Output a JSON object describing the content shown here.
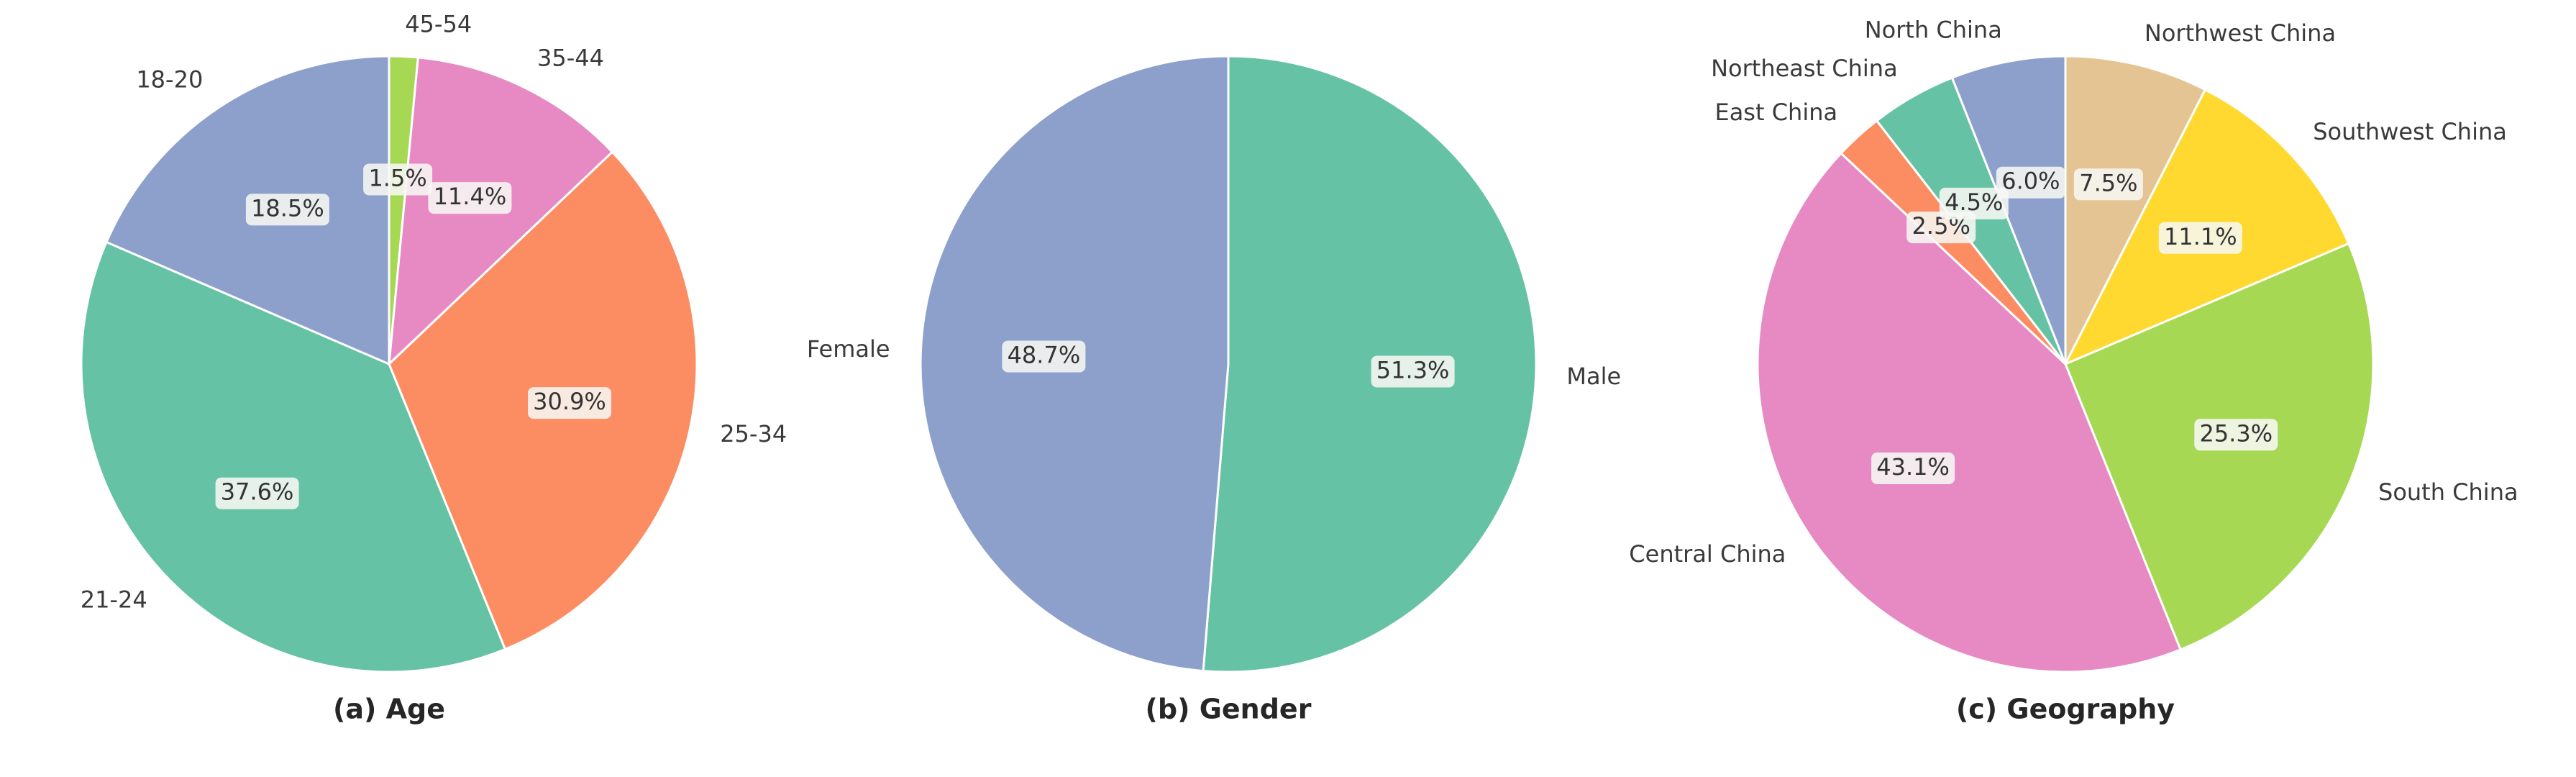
{
  "chart_data": [
    {
      "type": "pie",
      "title": "(a) Age",
      "start_angle_deg": 90,
      "direction": "clockwise",
      "slices": [
        {
          "label": "45-54",
          "value": 1.5,
          "pct_label": "1.5%",
          "color": "#a6d854"
        },
        {
          "label": "35-44",
          "value": 11.4,
          "pct_label": "11.4%",
          "color": "#e78ac3"
        },
        {
          "label": "25-34",
          "value": 30.9,
          "pct_label": "30.9%",
          "color": "#fc8d62"
        },
        {
          "label": "21-24",
          "value": 37.6,
          "pct_label": "37.6%",
          "color": "#66c2a5"
        },
        {
          "label": "18-20",
          "value": 18.5,
          "pct_label": "18.5%",
          "color": "#8da0cb"
        }
      ]
    },
    {
      "type": "pie",
      "title": "(b) Gender",
      "start_angle_deg": 90,
      "direction": "clockwise",
      "slices": [
        {
          "label": "Male",
          "value": 51.3,
          "pct_label": "51.3%",
          "color": "#66c2a5"
        },
        {
          "label": "Female",
          "value": 48.7,
          "pct_label": "48.7%",
          "color": "#8da0cb"
        }
      ]
    },
    {
      "type": "pie",
      "title": "(c) Geography",
      "start_angle_deg": 90,
      "direction": "clockwise",
      "slices": [
        {
          "label": "Northwest China",
          "value": 7.5,
          "pct_label": "7.5%",
          "color": "#e5c494"
        },
        {
          "label": "Southwest China",
          "value": 11.1,
          "pct_label": "11.1%",
          "color": "#ffd92f"
        },
        {
          "label": "South China",
          "value": 25.3,
          "pct_label": "25.3%",
          "color": "#a6d854"
        },
        {
          "label": "Central China",
          "value": 43.1,
          "pct_label": "43.1%",
          "color": "#e78ac3"
        },
        {
          "label": "East China",
          "value": 2.5,
          "pct_label": "2.5%",
          "color": "#fc8d62"
        },
        {
          "label": "Northeast China",
          "value": 4.5,
          "pct_label": "4.5%",
          "color": "#66c2a5"
        },
        {
          "label": "North China",
          "value": 6.0,
          "pct_label": "6.0%",
          "color": "#8da0cb"
        }
      ]
    }
  ]
}
